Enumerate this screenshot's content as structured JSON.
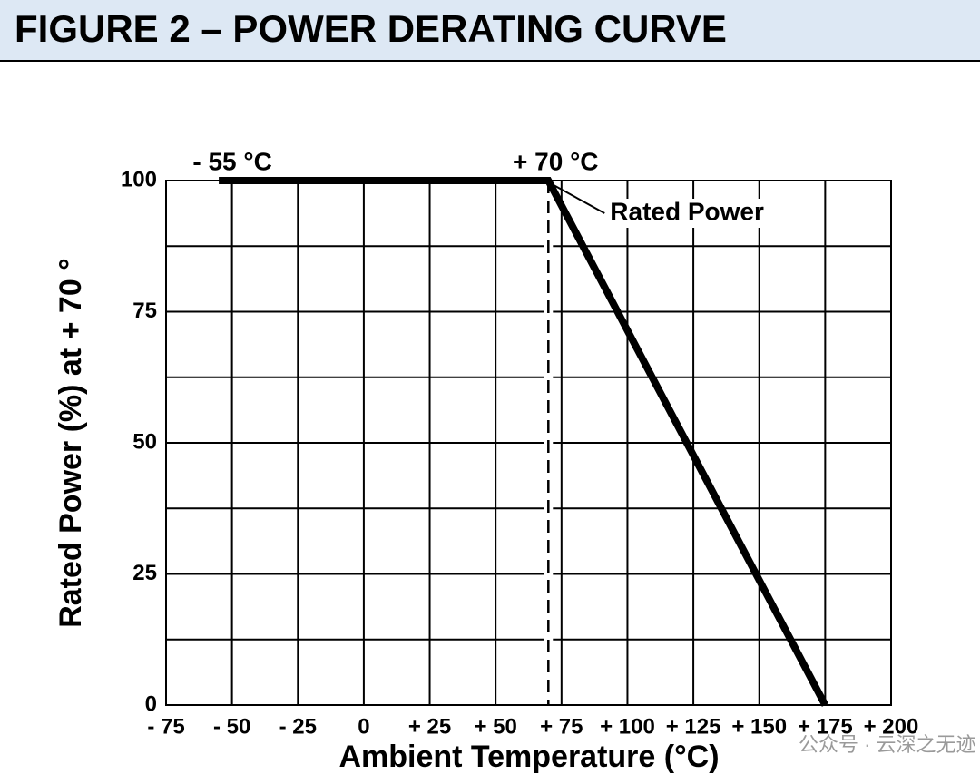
{
  "chart_data": {
    "type": "line",
    "title": "FIGURE 2 – POWER DERATING CURVE",
    "x_label": "Ambient Temperature (°C)",
    "y_label": "Rated Power (%) at + 70 °",
    "annotations": [
      "- 55 °C",
      "+ 70 °C",
      "Rated Power"
    ],
    "watermark": "公众号 · 云深之无迹",
    "xlim": [
      -75,
      200
    ],
    "xticks": [
      {
        "value": -75,
        "label": "- 75"
      },
      {
        "value": -50,
        "label": "- 50"
      },
      {
        "value": -25,
        "label": "- 25"
      },
      0,
      {
        "value": 25,
        "label": "+ 25"
      },
      {
        "value": 50,
        "label": "+ 50"
      },
      {
        "value": 75,
        "label": "+ 75"
      },
      {
        "value": 100,
        "label": "+ 100"
      },
      {
        "value": 125,
        "label": "+ 125"
      },
      {
        "value": 150,
        "label": "+ 150"
      },
      {
        "value": 175,
        "label": "+ 175"
      },
      {
        "value": 200,
        "label": "+ 200"
      }
    ],
    "ylim": [
      0,
      100
    ],
    "yticks": [
      0,
      25,
      50,
      75,
      100
    ],
    "minor_yticks": [
      12.5,
      37.5,
      62.5,
      87.5
    ],
    "grid": true,
    "series": [
      {
        "name": "Rated Power",
        "color": "#000000",
        "x": [
          -55,
          70,
          175
        ],
        "values": [
          100,
          100,
          0
        ]
      }
    ]
  }
}
